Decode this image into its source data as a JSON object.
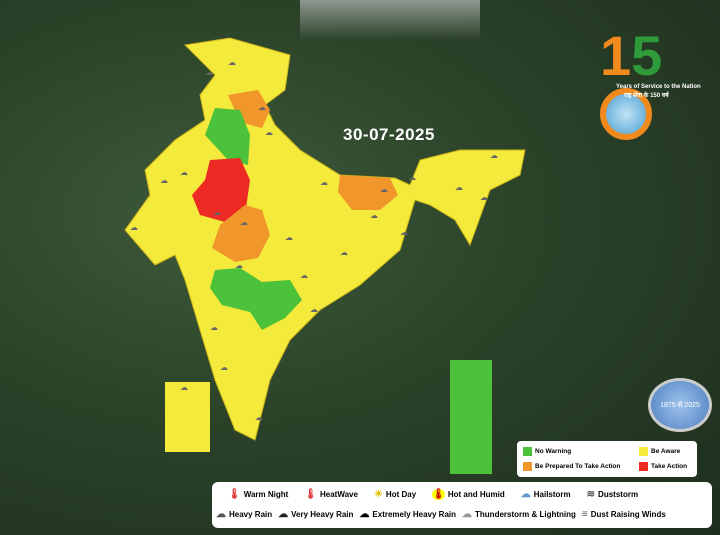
{
  "date": "30-07-2025",
  "logo": {
    "number": "150",
    "tagline": "Years of Service to the Nation",
    "hindi_tagline": "राष्ट्र सेवा के 150 वर्ष",
    "seal_text": "1875 से 2025"
  },
  "colors": {
    "no_warning": "#4cc13a",
    "be_aware": "#f4ea3c",
    "be_prepared": "#f0962a",
    "take_action": "#ee2a25"
  },
  "warning_legend": {
    "no_warning": "No Warning",
    "be_aware": "Be Aware",
    "be_prepared": "Be Prepared To Take Action",
    "take_action": "Take Action"
  },
  "symbol_legend": {
    "row1": [
      {
        "icon": "warm-night-icon",
        "label": "Warm Night"
      },
      {
        "icon": "heatwave-icon",
        "label": "HeatWave"
      },
      {
        "icon": "hot-day-icon",
        "label": "Hot Day"
      },
      {
        "icon": "hot-humid-icon",
        "label": "Hot and Humid"
      },
      {
        "icon": "hailstorm-icon",
        "label": "Hailstorm"
      },
      {
        "icon": "duststorm-icon",
        "label": "Duststorm"
      }
    ],
    "row2": [
      {
        "icon": "heavy-rain-icon",
        "label": "Heavy Rain"
      },
      {
        "icon": "very-heavy-rain-icon",
        "label": "Very Heavy Rain"
      },
      {
        "icon": "extremely-heavy-rain-icon",
        "label": "Extremely Heavy Rain"
      },
      {
        "icon": "thunderstorm-icon",
        "label": "Thunderstorm & Lightning"
      },
      {
        "icon": "dust-raising-winds-icon",
        "label": "Dust Raising Winds"
      }
    ]
  }
}
